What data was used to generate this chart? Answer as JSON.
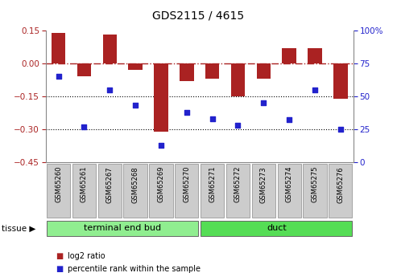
{
  "title": "GDS2115 / 4615",
  "samples": [
    "GSM65260",
    "GSM65261",
    "GSM65267",
    "GSM65268",
    "GSM65269",
    "GSM65270",
    "GSM65271",
    "GSM65272",
    "GSM65273",
    "GSM65274",
    "GSM65275",
    "GSM65276"
  ],
  "log2_ratio": [
    0.14,
    -0.06,
    0.13,
    -0.03,
    -0.31,
    -0.08,
    -0.07,
    -0.15,
    -0.07,
    0.07,
    0.07,
    -0.16
  ],
  "percentile": [
    65,
    27,
    55,
    43,
    13,
    38,
    33,
    28,
    45,
    32,
    55,
    25
  ],
  "bar_color": "#aa2222",
  "dot_color": "#2222cc",
  "ylim_left": [
    -0.45,
    0.15
  ],
  "ylim_right": [
    0,
    100
  ],
  "yticks_left": [
    -0.45,
    -0.3,
    -0.15,
    0.0,
    0.15
  ],
  "yticks_right": [
    0,
    25,
    50,
    75,
    100
  ],
  "hline_zero": 0.0,
  "hlines_dotted": [
    -0.15,
    -0.3
  ],
  "groups": [
    {
      "label": "terminal end bud",
      "start": 0,
      "end": 6,
      "color": "#90ee90"
    },
    {
      "label": "duct",
      "start": 6,
      "end": 12,
      "color": "#55dd55"
    }
  ],
  "tissue_label": "tissue",
  "legend_bar_label": "log2 ratio",
  "legend_dot_label": "percentile rank within the sample",
  "background_color": "#ffffff",
  "label_color_left": "#aa2222",
  "label_color_right": "#2222cc",
  "xlab_bg_color": "#cccccc",
  "xlab_border_color": "#999999",
  "tissue_border_color": "#666666"
}
